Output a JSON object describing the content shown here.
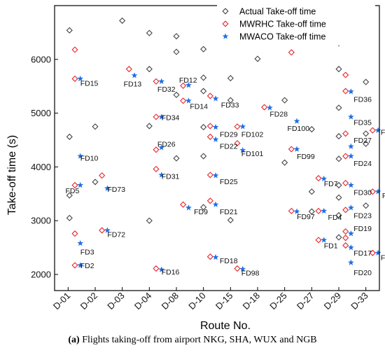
{
  "chart_data": {
    "type": "scatter",
    "xlabel": "Route No.",
    "ylabel": "Take-off time (s)",
    "ylim": [
      1700,
      7000
    ],
    "yticks": [
      2000,
      3000,
      4000,
      5000,
      6000
    ],
    "categories": [
      "D-01",
      "D-02",
      "D-03",
      "D-04",
      "D-08",
      "D-10",
      "D-15",
      "D-18",
      "D-25",
      "D-27",
      "D-29",
      "D-33"
    ],
    "legend_position": "top-right",
    "caption_tag": "(a)",
    "caption_text": " Flights taking-off from airport NKG, SHA, WUX and NGB",
    "series": [
      {
        "name": "Actual Take-off time",
        "color": "#444444",
        "marker": "diamond",
        "points": [
          {
            "x": 0.05,
            "y": 6540
          },
          {
            "x": 0.05,
            "y": 4560
          },
          {
            "x": 0.05,
            "y": 3470
          },
          {
            "x": 0.05,
            "y": 3050
          },
          {
            "x": 1.0,
            "y": 4750
          },
          {
            "x": 1.0,
            "y": 3720
          },
          {
            "x": 2.0,
            "y": 6720
          },
          {
            "x": 3.0,
            "y": 6490
          },
          {
            "x": 3.0,
            "y": 5820
          },
          {
            "x": 3.0,
            "y": 4760
          },
          {
            "x": 3.0,
            "y": 3000
          },
          {
            "x": 4.0,
            "y": 6430
          },
          {
            "x": 4.0,
            "y": 6140
          },
          {
            "x": 4.0,
            "y": 5340
          },
          {
            "x": 4.0,
            "y": 4160
          },
          {
            "x": 5.0,
            "y": 6190
          },
          {
            "x": 5.0,
            "y": 5660
          },
          {
            "x": 5.0,
            "y": 5410
          },
          {
            "x": 5.0,
            "y": 4740
          },
          {
            "x": 5.0,
            "y": 4200
          },
          {
            "x": 5.0,
            "y": 3250
          },
          {
            "x": 6.0,
            "y": 5650
          },
          {
            "x": 6.0,
            "y": 5240
          },
          {
            "x": 6.0,
            "y": 3010
          },
          {
            "x": 7.0,
            "y": 6010
          },
          {
            "x": 8.0,
            "y": 5240
          },
          {
            "x": 8.0,
            "y": 4080
          },
          {
            "x": 9.0,
            "y": 4700
          },
          {
            "x": 9.0,
            "y": 3540
          },
          {
            "x": 9.0,
            "y": 3170
          },
          {
            "x": 10.0,
            "y": 6300
          },
          {
            "x": 10.0,
            "y": 5820
          },
          {
            "x": 10.0,
            "y": 5100
          },
          {
            "x": 10.0,
            "y": 4570
          },
          {
            "x": 10.0,
            "y": 4150
          },
          {
            "x": 10.0,
            "y": 3660
          },
          {
            "x": 10.0,
            "y": 3430
          },
          {
            "x": 10.0,
            "y": 3100
          },
          {
            "x": 10.0,
            "y": 2690
          },
          {
            "x": 11.0,
            "y": 5580
          },
          {
            "x": 11.0,
            "y": 4620
          },
          {
            "x": 11.0,
            "y": 4430
          },
          {
            "x": 11.0,
            "y": 3280
          }
        ]
      },
      {
        "name": "MWRHC Take-off time",
        "color": "#e8262b",
        "marker": "diamond",
        "points": [
          {
            "x": 0.25,
            "y": 6180
          },
          {
            "x": 0.25,
            "y": 5640
          },
          {
            "x": 0.25,
            "y": 3660
          },
          {
            "x": 0.25,
            "y": 2760
          },
          {
            "x": 0.25,
            "y": 2170
          },
          {
            "x": 1.25,
            "y": 3840
          },
          {
            "x": 1.25,
            "y": 2820
          },
          {
            "x": 2.25,
            "y": 5820
          },
          {
            "x": 3.25,
            "y": 5590
          },
          {
            "x": 3.25,
            "y": 4930
          },
          {
            "x": 3.25,
            "y": 4320
          },
          {
            "x": 3.25,
            "y": 3960
          },
          {
            "x": 3.25,
            "y": 2110
          },
          {
            "x": 4.25,
            "y": 5510
          },
          {
            "x": 4.25,
            "y": 5230
          },
          {
            "x": 4.25,
            "y": 3300
          },
          {
            "x": 5.25,
            "y": 5320
          },
          {
            "x": 5.25,
            "y": 4760
          },
          {
            "x": 5.25,
            "y": 4560
          },
          {
            "x": 5.25,
            "y": 3850
          },
          {
            "x": 5.25,
            "y": 3370
          },
          {
            "x": 5.25,
            "y": 2330
          },
          {
            "x": 6.25,
            "y": 4750
          },
          {
            "x": 6.25,
            "y": 4440
          },
          {
            "x": 6.25,
            "y": 2110
          },
          {
            "x": 7.25,
            "y": 5110
          },
          {
            "x": 8.25,
            "y": 6130
          },
          {
            "x": 8.25,
            "y": 4330
          },
          {
            "x": 8.25,
            "y": 3180
          },
          {
            "x": 9.25,
            "y": 3790
          },
          {
            "x": 9.25,
            "y": 3180
          },
          {
            "x": 9.25,
            "y": 2640
          },
          {
            "x": 10.25,
            "y": 5710
          },
          {
            "x": 10.25,
            "y": 5410
          },
          {
            "x": 10.25,
            "y": 4620
          },
          {
            "x": 10.25,
            "y": 4200
          },
          {
            "x": 10.25,
            "y": 3700
          },
          {
            "x": 10.25,
            "y": 3200
          },
          {
            "x": 10.25,
            "y": 2800
          },
          {
            "x": 10.25,
            "y": 2680
          },
          {
            "x": 10.25,
            "y": 2540
          },
          {
            "x": 11.25,
            "y": 4680
          },
          {
            "x": 11.25,
            "y": 3540
          },
          {
            "x": 11.25,
            "y": 2400
          }
        ]
      },
      {
        "name": "MWACO Take-off time",
        "color": "#1f6fe6",
        "marker": "star",
        "points": [
          {
            "x": 0.45,
            "y": 5640
          },
          {
            "x": 0.45,
            "y": 4200
          },
          {
            "x": 0.45,
            "y": 3660
          },
          {
            "x": 0.45,
            "y": 2580
          },
          {
            "x": 0.45,
            "y": 2170
          },
          {
            "x": 1.45,
            "y": 3600
          },
          {
            "x": 1.45,
            "y": 2820
          },
          {
            "x": 2.45,
            "y": 5700
          },
          {
            "x": 3.45,
            "y": 5590
          },
          {
            "x": 3.45,
            "y": 4930
          },
          {
            "x": 3.45,
            "y": 4360
          },
          {
            "x": 3.45,
            "y": 3850
          },
          {
            "x": 3.45,
            "y": 2090
          },
          {
            "x": 4.45,
            "y": 5520
          },
          {
            "x": 4.45,
            "y": 5230
          },
          {
            "x": 4.45,
            "y": 3240
          },
          {
            "x": 5.45,
            "y": 5270
          },
          {
            "x": 5.45,
            "y": 4740
          },
          {
            "x": 5.45,
            "y": 4510
          },
          {
            "x": 5.45,
            "y": 3840
          },
          {
            "x": 5.45,
            "y": 3300
          },
          {
            "x": 5.45,
            "y": 2320
          },
          {
            "x": 6.45,
            "y": 4750
          },
          {
            "x": 6.45,
            "y": 4310
          },
          {
            "x": 6.45,
            "y": 2100
          },
          {
            "x": 7.45,
            "y": 5100
          },
          {
            "x": 8.45,
            "y": 4850
          },
          {
            "x": 8.45,
            "y": 4330
          },
          {
            "x": 8.45,
            "y": 3170
          },
          {
            "x": 9.45,
            "y": 3780
          },
          {
            "x": 9.45,
            "y": 3180
          },
          {
            "x": 9.45,
            "y": 2640
          },
          {
            "x": 10.45,
            "y": 5400
          },
          {
            "x": 10.45,
            "y": 4930
          },
          {
            "x": 10.45,
            "y": 4380
          },
          {
            "x": 10.45,
            "y": 4200
          },
          {
            "x": 10.45,
            "y": 3660
          },
          {
            "x": 10.45,
            "y": 3240
          },
          {
            "x": 10.45,
            "y": 2760
          },
          {
            "x": 10.45,
            "y": 2500
          },
          {
            "x": 10.45,
            "y": 2220
          },
          {
            "x": 11.45,
            "y": 4680
          },
          {
            "x": 11.45,
            "y": 3540
          },
          {
            "x": 11.45,
            "y": 2400
          }
        ]
      }
    ],
    "annotations": [
      {
        "text": "FD15",
        "x": 0.45,
        "y": 5560
      },
      {
        "text": "FD10",
        "x": 0.45,
        "y": 4170
      },
      {
        "text": "FD5",
        "x": -0.1,
        "y": 3560
      },
      {
        "text": "FD3",
        "x": 0.45,
        "y": 2420
      },
      {
        "text": "FD2",
        "x": 0.45,
        "y": 2170
      },
      {
        "text": "FD73",
        "x": 1.45,
        "y": 3590
      },
      {
        "text": "FD72",
        "x": 1.45,
        "y": 2750
      },
      {
        "text": "FD13",
        "x": 2.05,
        "y": 5550
      },
      {
        "text": "FD32",
        "x": 3.3,
        "y": 5450
      },
      {
        "text": "FD34",
        "x": 3.45,
        "y": 4920
      },
      {
        "text": "FD26",
        "x": 3.3,
        "y": 4430
      },
      {
        "text": "FD31",
        "x": 3.45,
        "y": 3830
      },
      {
        "text": "FD16",
        "x": 3.45,
        "y": 2050
      },
      {
        "text": "FD12",
        "x": 4.1,
        "y": 5620
      },
      {
        "text": "FD14",
        "x": 4.5,
        "y": 5130
      },
      {
        "text": "FD9",
        "x": 4.65,
        "y": 3170
      },
      {
        "text": "FD33",
        "x": 5.65,
        "y": 5160
      },
      {
        "text": "FD29",
        "x": 5.6,
        "y": 4610
      },
      {
        "text": "FD22",
        "x": 5.6,
        "y": 4390
      },
      {
        "text": "FD25",
        "x": 5.6,
        "y": 3730
      },
      {
        "text": "FD21",
        "x": 5.6,
        "y": 3170
      },
      {
        "text": "FD18",
        "x": 5.6,
        "y": 2260
      },
      {
        "text": "FD102",
        "x": 6.4,
        "y": 4610
      },
      {
        "text": "FD101",
        "x": 6.4,
        "y": 4250
      },
      {
        "text": "FD98",
        "x": 6.4,
        "y": 2030
      },
      {
        "text": "FD28",
        "x": 7.45,
        "y": 4990
      },
      {
        "text": "FD100",
        "x": 8.1,
        "y": 4720
      },
      {
        "text": "FD99",
        "x": 8.45,
        "y": 4200
      },
      {
        "text": "FD97",
        "x": 8.45,
        "y": 3080
      },
      {
        "text": "FD7",
        "x": 9.45,
        "y": 3690
      },
      {
        "text": "FD4",
        "x": 9.6,
        "y": 3070
      },
      {
        "text": "FD1",
        "x": 9.45,
        "y": 2540
      },
      {
        "text": "FD36",
        "x": 10.55,
        "y": 5260
      },
      {
        "text": "FD35",
        "x": 10.55,
        "y": 4830
      },
      {
        "text": "FD27",
        "x": 10.55,
        "y": 4500
      },
      {
        "text": "FD24",
        "x": 10.55,
        "y": 4070
      },
      {
        "text": "FD30",
        "x": 10.55,
        "y": 3530
      },
      {
        "text": "FD23",
        "x": 10.55,
        "y": 3100
      },
      {
        "text": "FD19",
        "x": 10.55,
        "y": 2860
      },
      {
        "text": "FD17",
        "x": 10.55,
        "y": 2400
      },
      {
        "text": "FD20",
        "x": 10.55,
        "y": 2040
      },
      {
        "text": "FD11",
        "x": 11.55,
        "y": 4650
      },
      {
        "text": "FD8",
        "x": 11.6,
        "y": 3470
      },
      {
        "text": "FD6",
        "x": 11.55,
        "y": 2320
      }
    ]
  }
}
